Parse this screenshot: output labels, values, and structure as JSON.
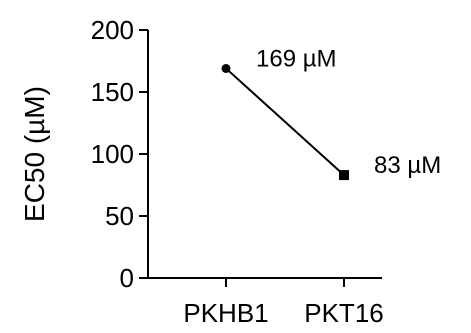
{
  "chart_data": {
    "type": "line",
    "title": "",
    "xlabel": "",
    "ylabel": "EC50 (µM)",
    "ylim": [
      0,
      200
    ],
    "yticks": [
      0,
      50,
      100,
      150,
      200
    ],
    "categories": [
      "PKHB1",
      "PKT16"
    ],
    "series": [
      {
        "values": [
          169,
          83
        ],
        "markers": [
          "circle",
          "square"
        ],
        "data_labels": [
          "169 µM",
          "83 µM"
        ]
      }
    ],
    "grid": false,
    "legend": "none"
  }
}
